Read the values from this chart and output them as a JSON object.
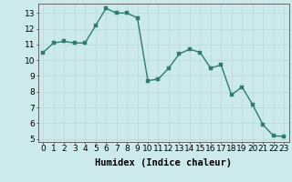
{
  "x": [
    0,
    1,
    2,
    3,
    4,
    5,
    6,
    7,
    8,
    9,
    10,
    11,
    12,
    13,
    14,
    15,
    16,
    17,
    18,
    19,
    20,
    21,
    22,
    23
  ],
  "y": [
    10.5,
    11.1,
    11.2,
    11.1,
    11.1,
    12.2,
    13.3,
    13.0,
    13.0,
    12.7,
    8.7,
    8.8,
    9.5,
    10.4,
    10.7,
    10.5,
    9.5,
    9.7,
    7.8,
    8.3,
    7.2,
    5.9,
    5.2,
    5.15
  ],
  "line_color": "#2e7d6e",
  "marker_color": "#2e7d6e",
  "bg_color": "#cce9ec",
  "grid_color": "#b8d8db",
  "xlabel": "Humidex (Indice chaleur)",
  "xlim": [
    -0.5,
    23.5
  ],
  "ylim": [
    4.8,
    13.6
  ],
  "yticks": [
    5,
    6,
    7,
    8,
    9,
    10,
    11,
    12,
    13
  ],
  "xticks": [
    0,
    1,
    2,
    3,
    4,
    5,
    6,
    7,
    8,
    9,
    10,
    11,
    12,
    13,
    14,
    15,
    16,
    17,
    18,
    19,
    20,
    21,
    22,
    23
  ],
  "xlabel_fontsize": 7.5,
  "tick_fontsize": 6.5,
  "line_width": 1.0,
  "marker_size": 2.5
}
